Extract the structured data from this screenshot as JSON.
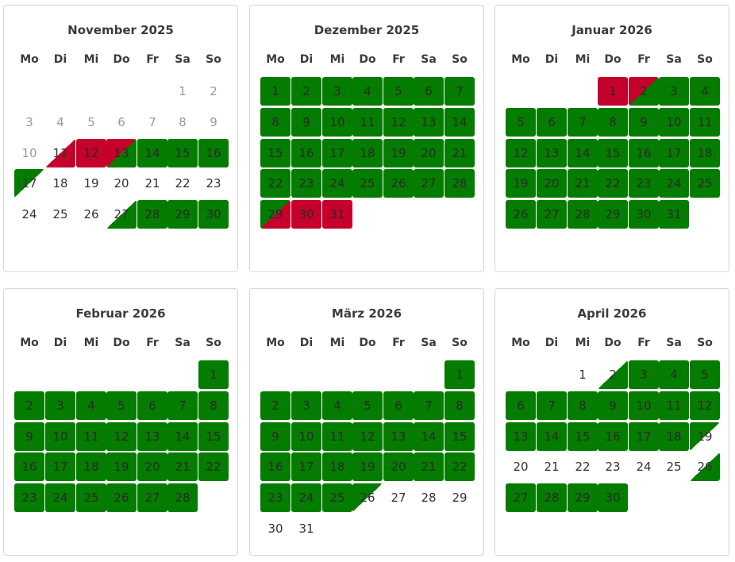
{
  "weekdays": [
    "Mo",
    "Di",
    "Mi",
    "Do",
    "Fr",
    "Sa",
    "So"
  ],
  "legend_colors": {
    "available": "#047c00",
    "booked": "#c4002b"
  },
  "months": [
    {
      "title": "November 2025",
      "offset": 5,
      "days_in_month": 30,
      "status": {
        "1": "past",
        "2": "past",
        "3": "past",
        "4": "past",
        "5": "past",
        "6": "past",
        "7": "past",
        "8": "past",
        "9": "past",
        "10": "past",
        "11": "rarr",
        "12": "booked",
        "13": "bg",
        "14": "full",
        "15": "full",
        "16": "full",
        "17": "dep",
        "27": "arr",
        "28": "full",
        "29": "full",
        "30": "full"
      }
    },
    {
      "title": "Dezember 2025",
      "offset": 0,
      "days_in_month": 31,
      "status": {
        "1": "full",
        "2": "full",
        "3": "full",
        "4": "full",
        "5": "full",
        "6": "full",
        "7": "full",
        "8": "full",
        "9": "full",
        "10": "full",
        "11": "full",
        "12": "full",
        "13": "full",
        "14": "full",
        "15": "full",
        "16": "full",
        "17": "full",
        "18": "full",
        "19": "full",
        "20": "full",
        "21": "full",
        "22": "full",
        "23": "full",
        "24": "full",
        "25": "full",
        "26": "full",
        "27": "full",
        "28": "full",
        "29": "gb",
        "30": "booked",
        "31": "booked"
      }
    },
    {
      "title": "Januar 2026",
      "offset": 3,
      "days_in_month": 31,
      "status": {
        "1": "booked",
        "2": "bg",
        "3": "full",
        "4": "full",
        "5": "full",
        "6": "full",
        "7": "full",
        "8": "full",
        "9": "full",
        "10": "full",
        "11": "full",
        "12": "full",
        "13": "full",
        "14": "full",
        "15": "full",
        "16": "full",
        "17": "full",
        "18": "full",
        "19": "full",
        "20": "full",
        "21": "full",
        "22": "full",
        "23": "full",
        "24": "full",
        "25": "full",
        "26": "full",
        "27": "full",
        "28": "full",
        "29": "full",
        "30": "full",
        "31": "full"
      }
    },
    {
      "title": "Februar 2026",
      "offset": 6,
      "days_in_month": 28,
      "status": {
        "1": "full",
        "2": "full",
        "3": "full",
        "4": "full",
        "5": "full",
        "6": "full",
        "7": "full",
        "8": "full",
        "9": "full",
        "10": "full",
        "11": "full",
        "12": "full",
        "13": "full",
        "14": "full",
        "15": "full",
        "16": "full",
        "17": "full",
        "18": "full",
        "19": "full",
        "20": "full",
        "21": "full",
        "22": "full",
        "23": "full",
        "24": "full",
        "25": "full",
        "26": "full",
        "27": "full",
        "28": "full"
      }
    },
    {
      "title": "März 2026",
      "offset": 6,
      "days_in_month": 31,
      "status": {
        "1": "full",
        "2": "full",
        "3": "full",
        "4": "full",
        "5": "full",
        "6": "full",
        "7": "full",
        "8": "full",
        "9": "full",
        "10": "full",
        "11": "full",
        "12": "full",
        "13": "full",
        "14": "full",
        "15": "full",
        "16": "full",
        "17": "full",
        "18": "full",
        "19": "full",
        "20": "full",
        "21": "full",
        "22": "full",
        "23": "full",
        "24": "full",
        "25": "full",
        "26": "dep"
      }
    },
    {
      "title": "April 2026",
      "offset": 2,
      "days_in_month": 30,
      "status": {
        "2": "arr",
        "3": "full",
        "4": "full",
        "5": "full",
        "6": "full",
        "7": "full",
        "8": "full",
        "9": "full",
        "10": "full",
        "11": "full",
        "12": "full",
        "13": "full",
        "14": "full",
        "15": "full",
        "16": "full",
        "17": "full",
        "18": "full",
        "19": "dep",
        "26": "arr",
        "27": "full",
        "28": "full",
        "29": "full",
        "30": "full"
      }
    }
  ]
}
